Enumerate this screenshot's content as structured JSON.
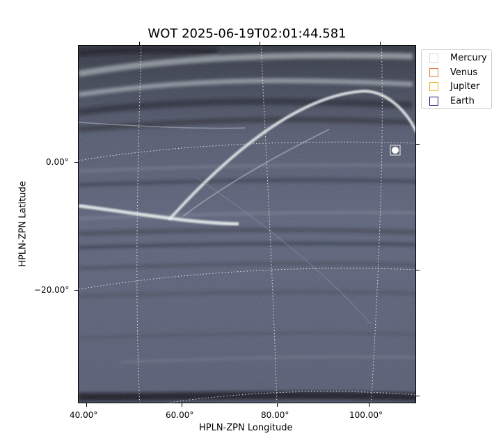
{
  "title": "WOT 2025-06-19T02:01:44.581",
  "x_axis": {
    "label": "HPLN-ZPN Longitude",
    "ticks": [
      "40.00°",
      "60.00°",
      "80.00°",
      "100.00°"
    ]
  },
  "y_axis": {
    "label": "HPLN-ZPN Latitude",
    "ticks": [
      "0.00°",
      "−20.00°"
    ]
  },
  "legend": {
    "items": [
      {
        "label": "Mercury",
        "color": "#d9d9d9"
      },
      {
        "label": "Venus",
        "color": "#e07b39"
      },
      {
        "label": "Jupiter",
        "color": "#e6b422"
      },
      {
        "label": "Earth",
        "color": "#1a1a80"
      }
    ]
  },
  "image": {
    "colormap": "bone",
    "background_color": "#4a5068"
  }
}
